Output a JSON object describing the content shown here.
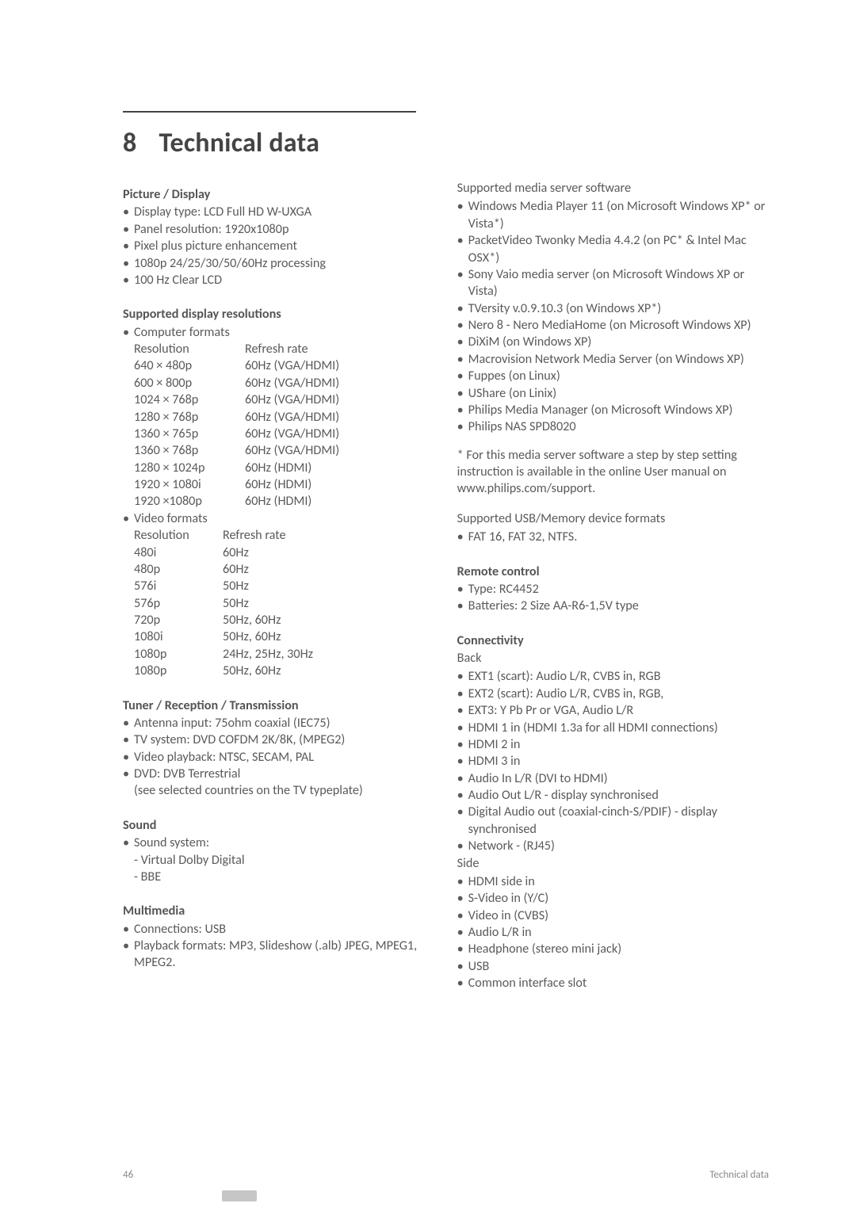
{
  "chapter": {
    "number": "8",
    "title": "Technical data"
  },
  "left": {
    "picture_display": {
      "heading": "Picture / Display",
      "items": [
        "Display type: LCD Full HD W-UXGA",
        "Panel resolution: 1920x1080p",
        "Pixel plus picture enhancement",
        "1080p 24/25/30/50/60Hz processing",
        "100 Hz Clear LCD"
      ]
    },
    "supported_res": {
      "heading": "Supported display resolutions",
      "computer_label": "Computer formats",
      "computer_header": {
        "c1": "Resolution",
        "c2": "Refresh rate"
      },
      "computer_rows": [
        {
          "c1": "640 × 480p",
          "c2": "60Hz (VGA/HDMI)"
        },
        {
          "c1": "600 × 800p",
          "c2": "60Hz (VGA/HDMI)"
        },
        {
          "c1": "1024 × 768p",
          "c2": "60Hz (VGA/HDMI)"
        },
        {
          "c1": "1280 × 768p",
          "c2": "60Hz (VGA/HDMI)"
        },
        {
          "c1": "1360 × 765p",
          "c2": "60Hz (VGA/HDMI)"
        },
        {
          "c1": "1360 × 768p",
          "c2": "60Hz (VGA/HDMI)"
        },
        {
          "c1": "1280 × 1024p",
          "c2": "60Hz (HDMI)"
        },
        {
          "c1": "1920 × 1080i",
          "c2": "60Hz (HDMI)"
        },
        {
          "c1": "1920 ×1080p",
          "c2": "60Hz (HDMI)"
        }
      ],
      "video_label": "Video formats",
      "video_header": {
        "c1": "Resolution",
        "c2": "Refresh rate"
      },
      "video_rows": [
        {
          "c1": "480i",
          "c2": "60Hz"
        },
        {
          "c1": "480p",
          "c2": "60Hz"
        },
        {
          "c1": "576i",
          "c2": "50Hz"
        },
        {
          "c1": "576p",
          "c2": "50Hz"
        },
        {
          "c1": "720p",
          "c2": "50Hz, 60Hz"
        },
        {
          "c1": "1080i",
          "c2": "50Hz, 60Hz"
        },
        {
          "c1": "1080p",
          "c2": "24Hz, 25Hz, 30Hz"
        },
        {
          "c1": "1080p",
          "c2": "50Hz, 60Hz"
        }
      ]
    },
    "tuner": {
      "heading": "Tuner / Reception / Transmission",
      "items": [
        "Antenna input: 75ohm coaxial (IEC75)",
        "TV system: DVD COFDM 2K/8K, (MPEG2)",
        "Video playback: NTSC, SECAM, PAL",
        "DVD: DVB Terrestrial"
      ],
      "dvd_note": "(see selected countries on the TV typeplate)"
    },
    "sound": {
      "heading": "Sound",
      "lead": "Sound system:",
      "lines": [
        "- Virtual Dolby Digital",
        "- BBE"
      ]
    },
    "multimedia": {
      "heading": "Multimedia",
      "items": [
        "Connections: USB",
        "Playback formats: MP3, Slideshow (.alb) JPEG, MPEG1, MPEG2."
      ]
    }
  },
  "right": {
    "media_server": {
      "lead": "Supported media server software",
      "items": [
        "Windows Media Player 11 (on Microsoft Windows XP* or Vista*)",
        "PacketVideo Twonky Media 4.4.2 (on PC* & Intel Mac OSX*)",
        "Sony Vaio media server (on Microsoft Windows XP or Vista)",
        "TVersity v.0.9.10.3 (on Windows XP*)",
        "Nero 8 - Nero MediaHome (on Microsoft Windows XP)",
        "DiXiM (on Windows XP)",
        "Macrovision Network Media Server (on Windows XP)",
        "Fuppes (on Linux)",
        "UShare (on Linix)",
        "Philips Media Manager (on Microsoft Windows XP)",
        "Philips NAS SPD8020"
      ],
      "note": "* For this media server software a step by step setting instruction is available in the online User manual on www.philips.com/support."
    },
    "usb": {
      "lead": "Supported USB/Memory device formats",
      "items": [
        "FAT 16, FAT 32, NTFS."
      ]
    },
    "remote": {
      "heading": "Remote control",
      "items": [
        "Type: RC4452",
        "Batteries: 2 Size AA-R6-1,5V type"
      ]
    },
    "connectivity": {
      "heading": "Connectivity",
      "back_label": "Back",
      "back_items": [
        "EXT1 (scart): Audio L/R, CVBS in, RGB",
        "EXT2 (scart): Audio L/R, CVBS in, RGB,",
        "EXT3: Y Pb Pr or VGA, Audio L/R",
        "HDMI 1 in (HDMI 1.3a for all HDMI connections)",
        "HDMI 2 in",
        "HDMI 3 in",
        "Audio In L/R (DVI to HDMI)",
        "Audio Out L/R - display synchronised",
        "Digital Audio out (coaxial-cinch-S/PDIF) - display synchronised",
        "Network - (RJ45)"
      ],
      "side_label": "Side",
      "side_items": [
        "HDMI side in",
        "S-Video in (Y/C)",
        "Video in (CVBS)",
        "Audio L/R in",
        "Headphone (stereo mini jack)",
        "USB",
        "Common interface slot"
      ]
    }
  },
  "footer": {
    "page": "46",
    "label": "Technical data"
  }
}
